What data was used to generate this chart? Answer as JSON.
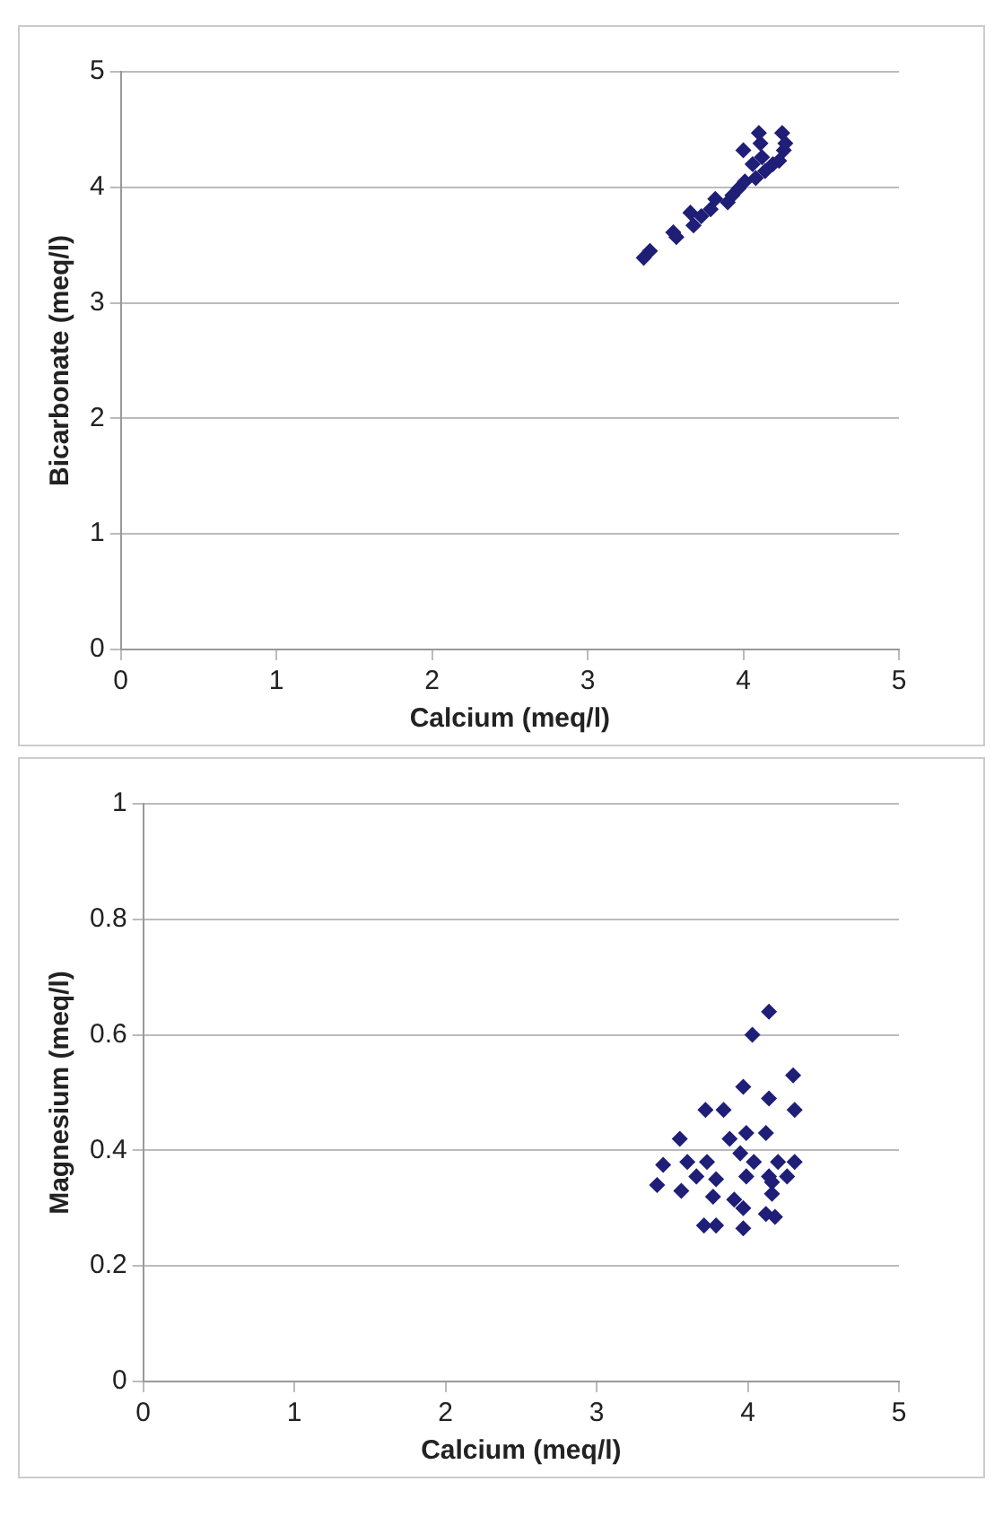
{
  "chart_data": [
    {
      "type": "scatter",
      "xlabel": "Calcium (meq/l)",
      "ylabel": "Bicarbonate (meq/l)",
      "xlim": [
        0,
        5
      ],
      "ylim": [
        0,
        5
      ],
      "xticks": [
        0,
        1,
        2,
        3,
        4,
        5
      ],
      "yticks": [
        0,
        1,
        2,
        3,
        4,
        5
      ],
      "grid": "y",
      "marker": "diamond",
      "color": "#1f1f78",
      "x": [
        3.36,
        3.4,
        3.55,
        3.57,
        3.68,
        3.66,
        3.73,
        3.79,
        3.82,
        3.9,
        3.93,
        3.97,
        4.01,
        4.0,
        4.08,
        4.1,
        4.11,
        4.14,
        4.19,
        4.23,
        4.25,
        4.26,
        4.27,
        4.12,
        4.06
      ],
      "values": [
        3.39,
        3.45,
        3.61,
        3.57,
        3.67,
        3.78,
        3.75,
        3.81,
        3.9,
        3.87,
        3.93,
        3.99,
        4.05,
        4.32,
        4.08,
        4.47,
        4.38,
        4.14,
        4.2,
        4.23,
        4.47,
        4.32,
        4.38,
        4.26,
        4.2
      ]
    },
    {
      "type": "scatter",
      "xlabel": "Calcium (meq/l)",
      "ylabel": "Magnesium (meq/l)",
      "xlim": [
        0,
        5
      ],
      "ylim": [
        0,
        1
      ],
      "xticks": [
        0,
        1,
        2,
        3,
        4,
        5
      ],
      "yticks": [
        0,
        0.2,
        0.4,
        0.6,
        0.8,
        1
      ],
      "grid": "y",
      "marker": "diamond",
      "color": "#1f1f78",
      "x": [
        4.14,
        4.03,
        4.3,
        3.97,
        3.72,
        3.84,
        4.14,
        4.31,
        3.55,
        3.88,
        3.99,
        4.12,
        3.44,
        3.6,
        3.73,
        3.95,
        4.04,
        4.2,
        4.31,
        3.4,
        3.66,
        3.79,
        3.99,
        4.14,
        3.56,
        3.77,
        3.91,
        4.16,
        3.97,
        4.12,
        4.18,
        3.71,
        3.79,
        3.97,
        4.16,
        4.26
      ],
      "values": [
        0.64,
        0.6,
        0.53,
        0.51,
        0.47,
        0.47,
        0.49,
        0.47,
        0.42,
        0.42,
        0.43,
        0.43,
        0.375,
        0.38,
        0.38,
        0.395,
        0.38,
        0.38,
        0.38,
        0.34,
        0.355,
        0.35,
        0.355,
        0.355,
        0.33,
        0.32,
        0.315,
        0.325,
        0.3,
        0.29,
        0.285,
        0.27,
        0.27,
        0.265,
        0.345,
        0.355
      ]
    }
  ]
}
